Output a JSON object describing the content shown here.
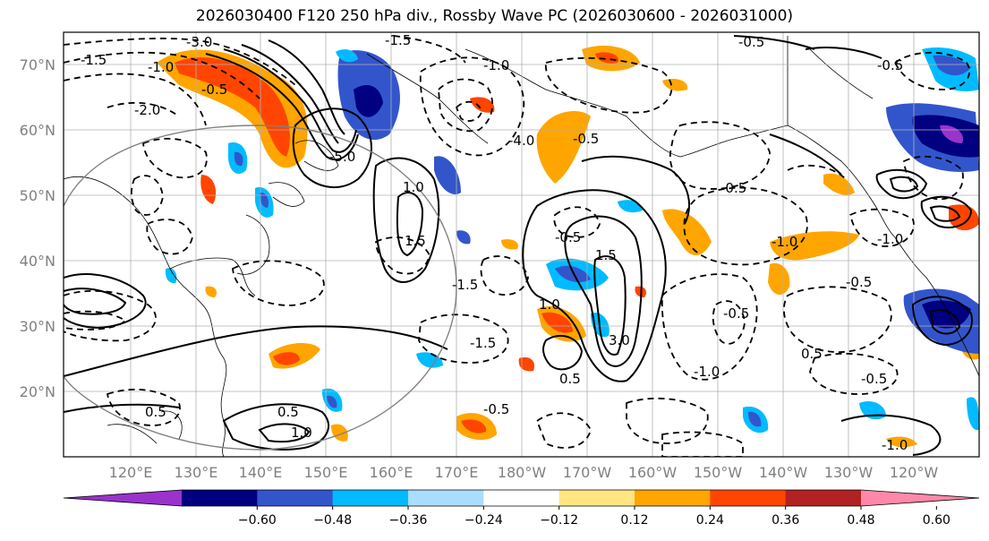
{
  "title": "2026030400 F120 250 hPa div., Rossby Wave PC (2026030600 - 2026031000)",
  "map": {
    "lat_labels": [
      "70°N",
      "60°N",
      "50°N",
      "40°N",
      "30°N",
      "20°N"
    ],
    "lon_labels": [
      "120°E",
      "130°E",
      "140°E",
      "150°E",
      "160°E",
      "170°E",
      "180°W",
      "170°W",
      "160°W",
      "150°W",
      "140°W",
      "130°W",
      "120°W"
    ],
    "contour_labels": [
      "-3.0",
      "-1.5",
      "-1.5",
      "-1.0",
      "-2.0",
      "-0.5",
      "-1.0",
      "-0.5",
      "-4.0",
      "-0.5",
      "-0.5",
      "-5.0",
      "1.0",
      "1.5",
      "-1.5",
      "-0.5",
      "1.5",
      "-0.5",
      "1.0",
      "-0.5",
      "-1.0",
      "-1.0",
      "-0.5",
      "3.0",
      "0.5",
      "-1.5",
      "-1.0",
      "0.5",
      "-0.5",
      "-1.0",
      "0.5",
      "-0.5",
      "0.5",
      "1.0"
    ]
  },
  "colorbar": {
    "colors": [
      "#9933cc",
      "#000080",
      "#3355cc",
      "#00bbff",
      "#aaddff",
      "#ffffff",
      "#ffe680",
      "#ffa500",
      "#ff4500",
      "#b22222",
      "#ff88aa"
    ],
    "tick_labels": [
      "−0.60",
      "−0.48",
      "−0.36",
      "−0.24",
      "−0.12",
      "0.12",
      "0.24",
      "0.36",
      "0.48",
      "0.60"
    ]
  }
}
